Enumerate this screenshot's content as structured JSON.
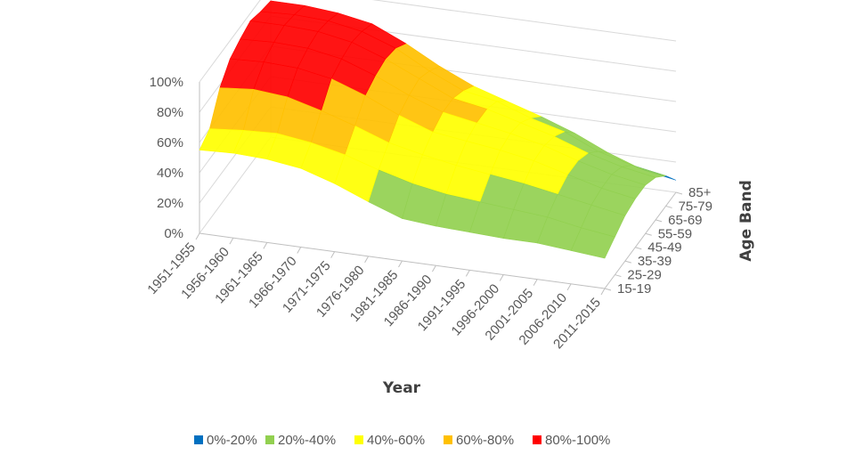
{
  "chart_data": {
    "type": "3d-surface",
    "x_axis": {
      "title": "Year",
      "categories": [
        "1951-1955",
        "1956-1960",
        "1961-1965",
        "1966-1970",
        "1971-1975",
        "1976-1980",
        "1981-1985",
        "1986-1990",
        "1991-1995",
        "1996-2000",
        "2001-2005",
        "2006-2010",
        "2011-2015"
      ]
    },
    "y_axis": {
      "title": "Age Band",
      "categories": [
        "15-19",
        "25-29",
        "35-39",
        "45-49",
        "55-59",
        "65-69",
        "75-79",
        "85+"
      ]
    },
    "z_axis": {
      "ticks": [
        "0%",
        "20%",
        "40%",
        "60%",
        "80%",
        "100%"
      ],
      "range": [
        0,
        100
      ]
    },
    "bands": [
      {
        "name": "0%-20%",
        "color": "#0070C0"
      },
      {
        "name": "20%-40%",
        "color": "#92D050"
      },
      {
        "name": "40%-60%",
        "color": "#FFFF00"
      },
      {
        "name": "60%-80%",
        "color": "#FFC000"
      },
      {
        "name": "80%-100%",
        "color": "#FF0000"
      }
    ],
    "legend_position": "bottom",
    "grid": true,
    "surface_values": [
      [
        55,
        60,
        78,
        88,
        92,
        95,
        92,
        90
      ],
      [
        56,
        62,
        80,
        89,
        93,
        95,
        93,
        90
      ],
      [
        55,
        63,
        78,
        88,
        92,
        94,
        92,
        88
      ],
      [
        52,
        60,
        72,
        84,
        88,
        90,
        88,
        84
      ],
      [
        45,
        55,
        65,
        76,
        80,
        82,
        80,
        74
      ],
      [
        36,
        48,
        57,
        66,
        70,
        72,
        68,
        62
      ],
      [
        28,
        42,
        52,
        58,
        62,
        62,
        58,
        52
      ],
      [
        26,
        38,
        48,
        55,
        58,
        58,
        54,
        45
      ],
      [
        25,
        36,
        45,
        52,
        54,
        52,
        46,
        38
      ],
      [
        24,
        34,
        42,
        48,
        49,
        46,
        40,
        30
      ],
      [
        24,
        32,
        38,
        42,
        42,
        38,
        30,
        20
      ],
      [
        22,
        28,
        34,
        36,
        36,
        32,
        24,
        12
      ],
      [
        20,
        25,
        30,
        32,
        32,
        28,
        20,
        8
      ]
    ]
  }
}
